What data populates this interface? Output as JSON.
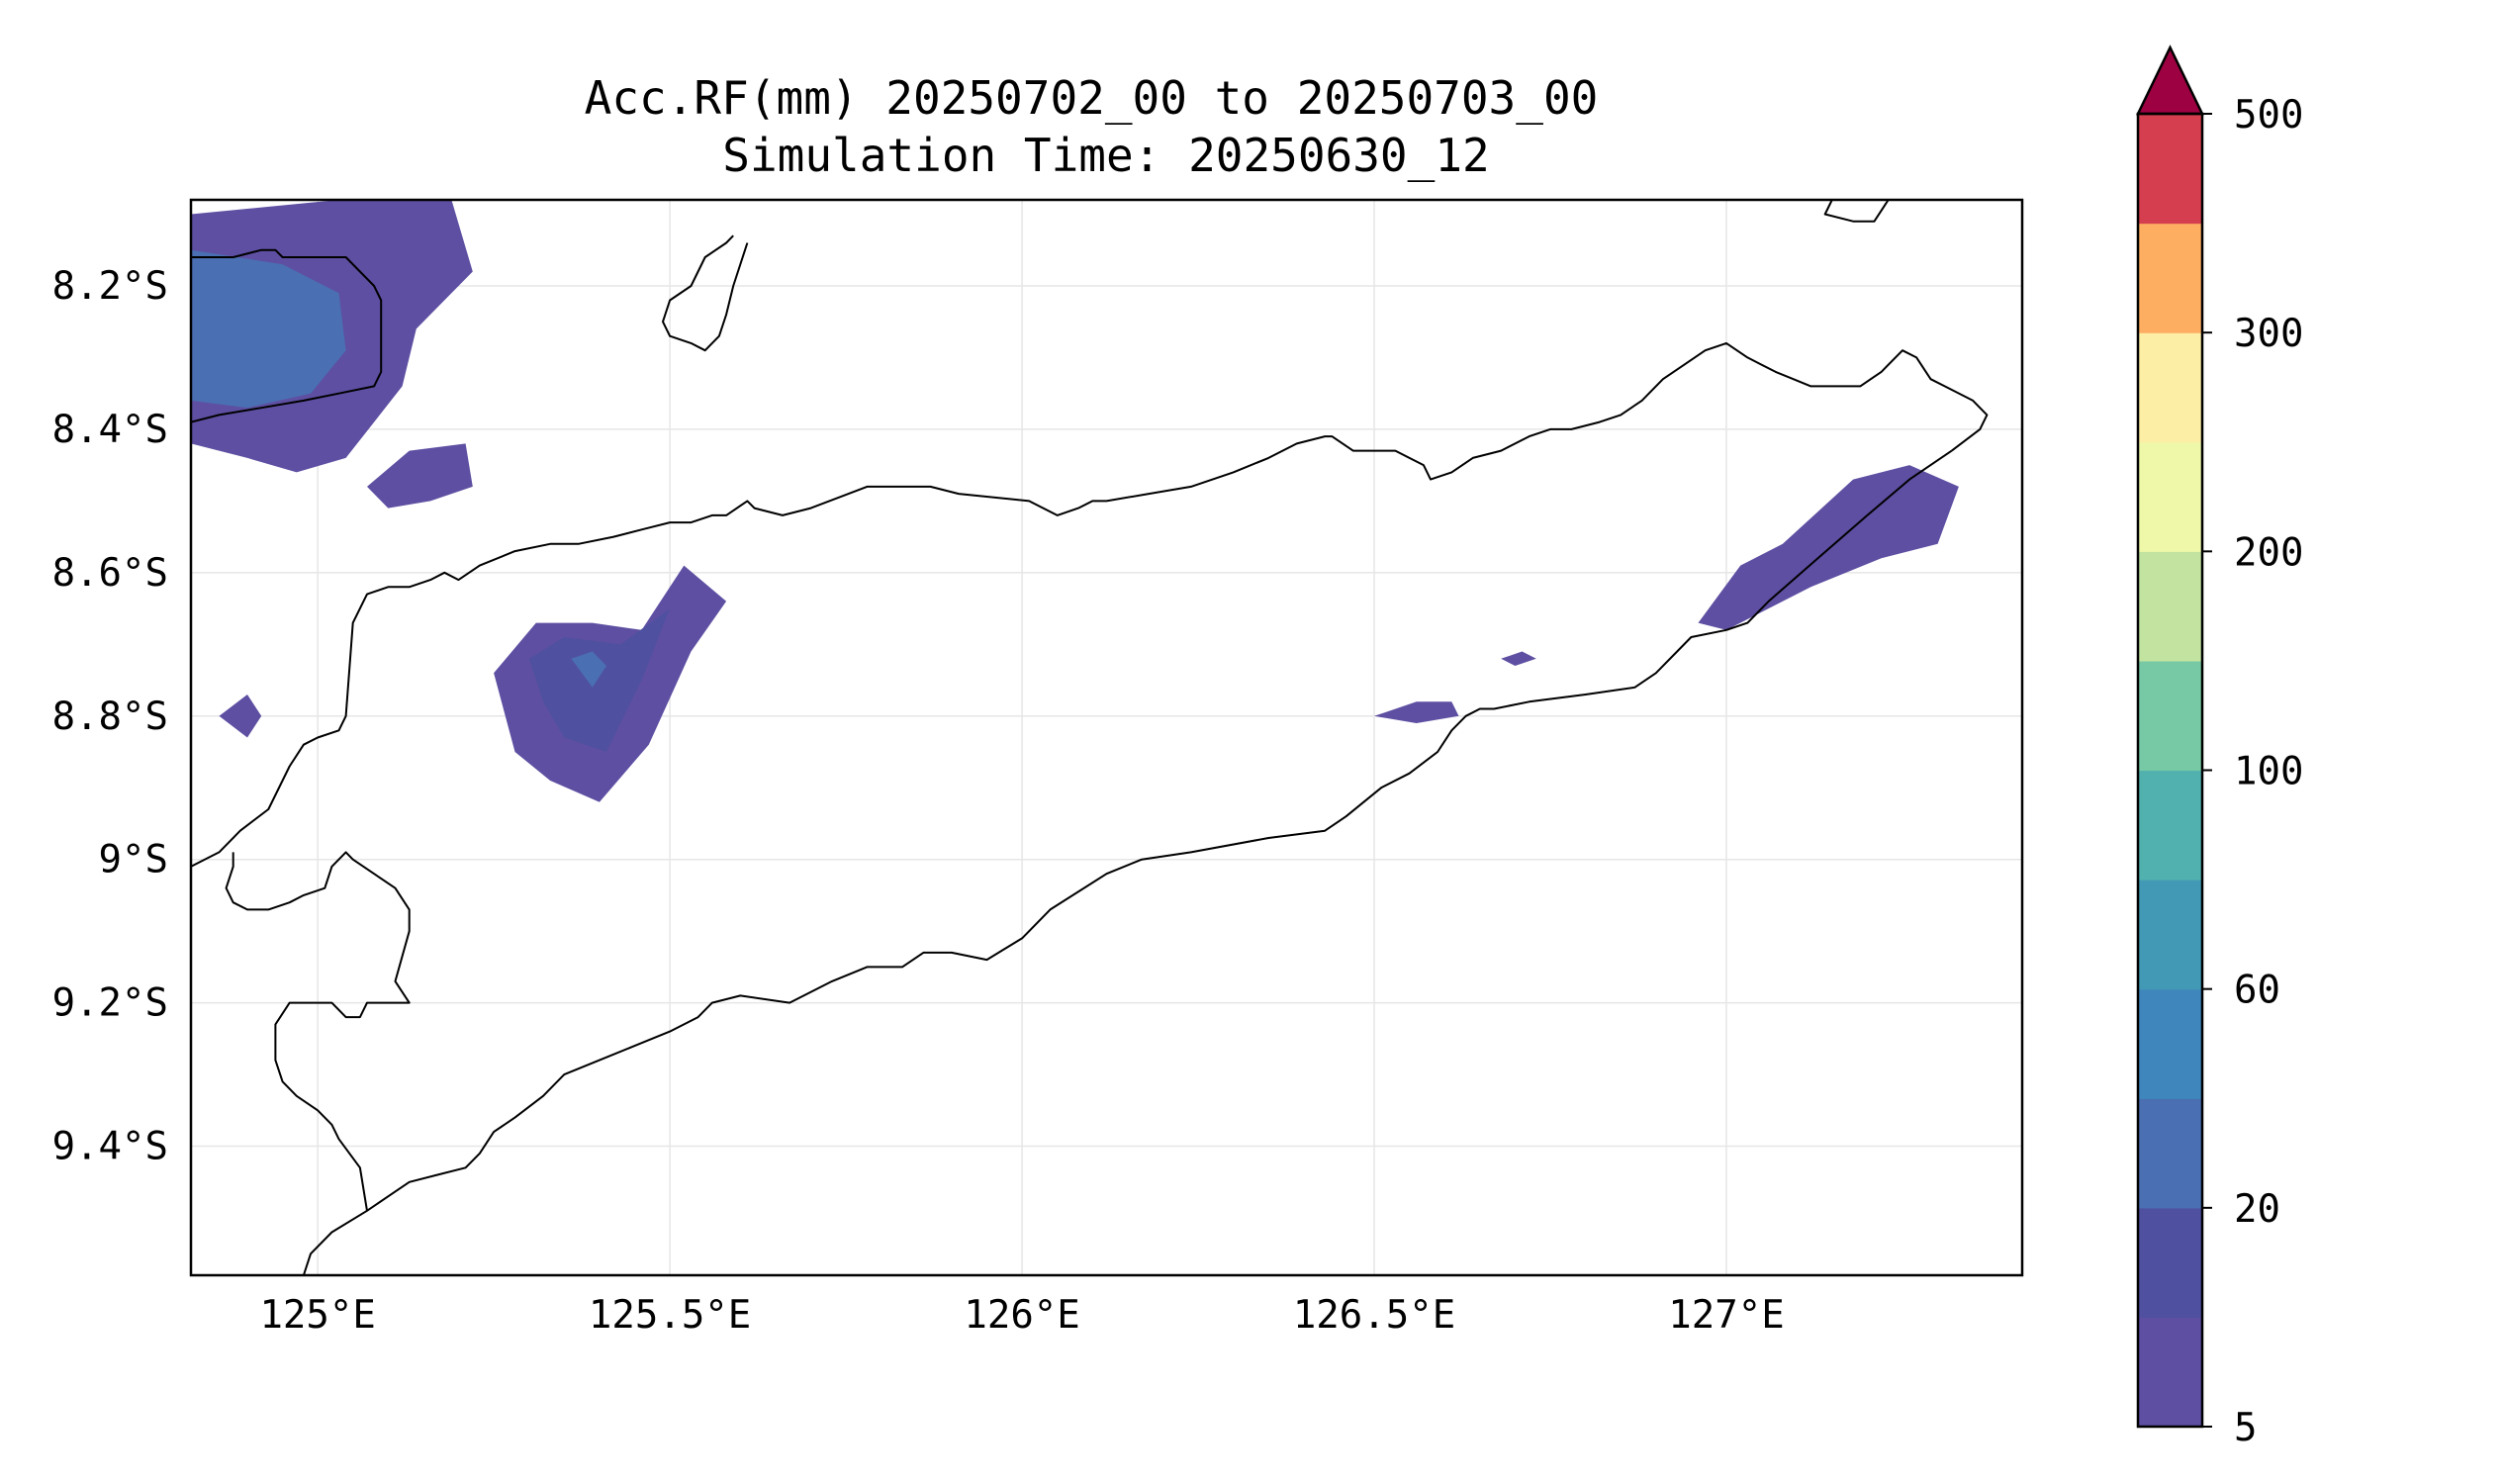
{
  "title": {
    "line1": "Acc.RF(mm) 20250702_00 to 20250703_00",
    "line2": "Simulation Time: 20250630_12"
  },
  "map": {
    "lon_range": [
      124.82,
      127.42
    ],
    "lat_range": [
      -9.58,
      -8.08
    ],
    "x_ticks": [
      {
        "value": 125.0,
        "label": "125°E"
      },
      {
        "value": 125.5,
        "label": "125.5°E"
      },
      {
        "value": 126.0,
        "label": "126°E"
      },
      {
        "value": 126.5,
        "label": "126.5°E"
      },
      {
        "value": 127.0,
        "label": "127°E"
      }
    ],
    "y_ticks": [
      {
        "value": -8.2,
        "label": "8.2°S"
      },
      {
        "value": -8.4,
        "label": "8.4°S"
      },
      {
        "value": -8.6,
        "label": "8.6°S"
      },
      {
        "value": -8.8,
        "label": "8.8°S"
      },
      {
        "value": -9.0,
        "label": "9°S"
      },
      {
        "value": -9.2,
        "label": "9.2°S"
      },
      {
        "value": -9.4,
        "label": "9.4°S"
      }
    ],
    "grid": true
  },
  "colorbar": {
    "extend": "max",
    "levels": [
      5,
      10,
      20,
      40,
      60,
      80,
      100,
      150,
      200,
      250,
      300,
      400,
      500
    ],
    "colors": [
      "#5e4fa2",
      "#5050a0",
      "#4a6fb2",
      "#3f86bc",
      "#4199b6",
      "#51b1ae",
      "#77c8a4",
      "#c2e4a0",
      "#eef8a8",
      "#fdeea6",
      "#fdae61",
      "#d53e4f"
    ],
    "extend_color": "#9e0142",
    "tick_labels": [
      {
        "level": 5,
        "label": "5"
      },
      {
        "level": 20,
        "label": "20"
      },
      {
        "level": 60,
        "label": "60"
      },
      {
        "level": 100,
        "label": "100"
      },
      {
        "level": 200,
        "label": "200"
      },
      {
        "level": 300,
        "label": "300"
      },
      {
        "level": 500,
        "label": "500"
      }
    ]
  },
  "rain_areas": [
    {
      "name": "rain-area-northwest",
      "color": "#5e4fa2",
      "polygon": [
        [
          124.82,
          -8.1
        ],
        [
          125.03,
          -8.08
        ],
        [
          125.19,
          -8.08
        ],
        [
          125.22,
          -8.18
        ],
        [
          125.14,
          -8.26
        ],
        [
          125.12,
          -8.34
        ],
        [
          125.04,
          -8.44
        ],
        [
          124.97,
          -8.46
        ],
        [
          124.9,
          -8.44
        ],
        [
          124.82,
          -8.42
        ]
      ]
    },
    {
      "name": "rain-area-northwest-core",
      "color": "#4a6fb2",
      "polygon": [
        [
          124.82,
          -8.15
        ],
        [
          124.95,
          -8.17
        ],
        [
          125.03,
          -8.21
        ],
        [
          125.04,
          -8.29
        ],
        [
          124.99,
          -8.35
        ],
        [
          124.9,
          -8.37
        ],
        [
          124.82,
          -8.36
        ]
      ]
    },
    {
      "name": "rain-area-small-north",
      "color": "#5e4fa2",
      "polygon": [
        [
          125.07,
          -8.48
        ],
        [
          125.13,
          -8.43
        ],
        [
          125.21,
          -8.42
        ],
        [
          125.22,
          -8.48
        ],
        [
          125.16,
          -8.5
        ],
        [
          125.1,
          -8.51
        ]
      ]
    },
    {
      "name": "rain-area-west-dot",
      "color": "#5e4fa2",
      "polygon": [
        [
          124.86,
          -8.8
        ],
        [
          124.9,
          -8.77
        ],
        [
          124.92,
          -8.8
        ],
        [
          124.9,
          -8.83
        ]
      ]
    },
    {
      "name": "rain-area-central",
      "color": "#5e4fa2",
      "polygon": [
        [
          125.25,
          -8.74
        ],
        [
          125.31,
          -8.67
        ],
        [
          125.39,
          -8.67
        ],
        [
          125.46,
          -8.68
        ],
        [
          125.52,
          -8.59
        ],
        [
          125.58,
          -8.64
        ],
        [
          125.53,
          -8.71
        ],
        [
          125.47,
          -8.84
        ],
        [
          125.4,
          -8.92
        ],
        [
          125.33,
          -8.89
        ],
        [
          125.28,
          -8.85
        ]
      ]
    },
    {
      "name": "rain-area-central-core",
      "color": "#5050a0",
      "polygon": [
        [
          125.3,
          -8.72
        ],
        [
          125.35,
          -8.69
        ],
        [
          125.43,
          -8.7
        ],
        [
          125.5,
          -8.65
        ],
        [
          125.46,
          -8.75
        ],
        [
          125.41,
          -8.85
        ],
        [
          125.35,
          -8.83
        ],
        [
          125.32,
          -8.78
        ]
      ]
    },
    {
      "name": "rain-area-central-spot",
      "color": "#4a6fb2",
      "polygon": [
        [
          125.36,
          -8.72
        ],
        [
          125.39,
          -8.71
        ],
        [
          125.41,
          -8.73
        ],
        [
          125.39,
          -8.76
        ]
      ]
    },
    {
      "name": "rain-area-east-small-1",
      "color": "#5e4fa2",
      "polygon": [
        [
          126.5,
          -8.8
        ],
        [
          126.56,
          -8.78
        ],
        [
          126.61,
          -8.78
        ],
        [
          126.62,
          -8.8
        ],
        [
          126.56,
          -8.81
        ]
      ]
    },
    {
      "name": "rain-area-east-small-2",
      "color": "#5e4fa2",
      "polygon": [
        [
          126.68,
          -8.72
        ],
        [
          126.71,
          -8.71
        ],
        [
          126.73,
          -8.72
        ],
        [
          126.7,
          -8.73
        ]
      ]
    },
    {
      "name": "rain-area-east",
      "color": "#5e4fa2",
      "polygon": [
        [
          126.96,
          -8.67
        ],
        [
          127.02,
          -8.59
        ],
        [
          127.08,
          -8.56
        ],
        [
          127.18,
          -8.47
        ],
        [
          127.26,
          -8.45
        ],
        [
          127.33,
          -8.48
        ],
        [
          127.3,
          -8.56
        ],
        [
          127.22,
          -8.58
        ],
        [
          127.12,
          -8.62
        ],
        [
          127.0,
          -8.68
        ]
      ]
    }
  ],
  "coastlines": [
    {
      "name": "timor-north-coast",
      "points": [
        [
          124.82,
          -9.01
        ],
        [
          124.86,
          -8.99
        ],
        [
          124.89,
          -8.96
        ],
        [
          124.93,
          -8.93
        ],
        [
          124.96,
          -8.87
        ],
        [
          124.98,
          -8.84
        ],
        [
          125.0,
          -8.83
        ],
        [
          125.03,
          -8.82
        ],
        [
          125.04,
          -8.8
        ],
        [
          125.05,
          -8.67
        ],
        [
          125.07,
          -8.63
        ],
        [
          125.1,
          -8.62
        ],
        [
          125.13,
          -8.62
        ],
        [
          125.16,
          -8.61
        ],
        [
          125.18,
          -8.6
        ],
        [
          125.2,
          -8.61
        ],
        [
          125.23,
          -8.59
        ],
        [
          125.28,
          -8.57
        ],
        [
          125.33,
          -8.56
        ],
        [
          125.37,
          -8.56
        ],
        [
          125.42,
          -8.55
        ],
        [
          125.46,
          -8.54
        ],
        [
          125.5,
          -8.53
        ],
        [
          125.53,
          -8.53
        ],
        [
          125.56,
          -8.52
        ],
        [
          125.58,
          -8.52
        ],
        [
          125.61,
          -8.5
        ],
        [
          125.62,
          -8.51
        ],
        [
          125.66,
          -8.52
        ],
        [
          125.7,
          -8.51
        ],
        [
          125.78,
          -8.48
        ],
        [
          125.87,
          -8.48
        ],
        [
          125.91,
          -8.49
        ],
        [
          126.01,
          -8.5
        ],
        [
          126.05,
          -8.52
        ],
        [
          126.08,
          -8.51
        ],
        [
          126.1,
          -8.5
        ],
        [
          126.12,
          -8.5
        ],
        [
          126.18,
          -8.49
        ],
        [
          126.24,
          -8.48
        ],
        [
          126.3,
          -8.46
        ],
        [
          126.35,
          -8.44
        ],
        [
          126.39,
          -8.42
        ],
        [
          126.43,
          -8.41
        ],
        [
          126.44,
          -8.41
        ],
        [
          126.47,
          -8.43
        ],
        [
          126.49,
          -8.43
        ],
        [
          126.53,
          -8.43
        ],
        [
          126.55,
          -8.44
        ],
        [
          126.57,
          -8.45
        ],
        [
          126.58,
          -8.47
        ],
        [
          126.61,
          -8.46
        ],
        [
          126.64,
          -8.44
        ],
        [
          126.68,
          -8.43
        ],
        [
          126.72,
          -8.41
        ],
        [
          126.75,
          -8.4
        ],
        [
          126.78,
          -8.4
        ],
        [
          126.82,
          -8.39
        ],
        [
          126.85,
          -8.38
        ],
        [
          126.88,
          -8.36
        ],
        [
          126.91,
          -8.33
        ],
        [
          126.94,
          -8.31
        ],
        [
          126.97,
          -8.29
        ],
        [
          127.0,
          -8.28
        ],
        [
          127.03,
          -8.3
        ],
        [
          127.07,
          -8.32
        ],
        [
          127.12,
          -8.34
        ],
        [
          127.16,
          -8.34
        ],
        [
          127.19,
          -8.34
        ],
        [
          127.22,
          -8.32
        ],
        [
          127.25,
          -8.29
        ],
        [
          127.27,
          -8.3
        ],
        [
          127.29,
          -8.33
        ],
        [
          127.31,
          -8.34
        ],
        [
          127.35,
          -8.36
        ],
        [
          127.37,
          -8.38
        ],
        [
          127.36,
          -8.4
        ],
        [
          127.32,
          -8.43
        ]
      ]
    },
    {
      "name": "timor-south-coast",
      "points": [
        [
          127.32,
          -8.43
        ],
        [
          127.26,
          -8.47
        ],
        [
          127.2,
          -8.52
        ],
        [
          127.13,
          -8.58
        ],
        [
          127.06,
          -8.64
        ],
        [
          127.03,
          -8.67
        ],
        [
          127.0,
          -8.68
        ],
        [
          126.95,
          -8.69
        ],
        [
          126.93,
          -8.71
        ],
        [
          126.9,
          -8.74
        ],
        [
          126.87,
          -8.76
        ],
        [
          126.8,
          -8.77
        ],
        [
          126.72,
          -8.78
        ],
        [
          126.67,
          -8.79
        ],
        [
          126.65,
          -8.79
        ],
        [
          126.63,
          -8.8
        ],
        [
          126.61,
          -8.82
        ],
        [
          126.59,
          -8.85
        ],
        [
          126.55,
          -8.88
        ],
        [
          126.51,
          -8.9
        ],
        [
          126.46,
          -8.94
        ],
        [
          126.43,
          -8.96
        ],
        [
          126.35,
          -8.97
        ],
        [
          126.24,
          -8.99
        ],
        [
          126.17,
          -9.0
        ],
        [
          126.12,
          -9.02
        ],
        [
          126.04,
          -9.07
        ],
        [
          126.0,
          -9.11
        ],
        [
          125.95,
          -9.14
        ],
        [
          125.9,
          -9.13
        ],
        [
          125.86,
          -9.13
        ],
        [
          125.83,
          -9.15
        ],
        [
          125.78,
          -9.15
        ],
        [
          125.73,
          -9.17
        ],
        [
          125.67,
          -9.2
        ],
        [
          125.6,
          -9.19
        ],
        [
          125.56,
          -9.2
        ],
        [
          125.54,
          -9.22
        ],
        [
          125.5,
          -9.24
        ],
        [
          125.45,
          -9.26
        ],
        [
          125.4,
          -9.28
        ],
        [
          125.35,
          -9.3
        ],
        [
          125.32,
          -9.33
        ],
        [
          125.28,
          -9.36
        ],
        [
          125.25,
          -9.38
        ],
        [
          125.23,
          -9.41
        ],
        [
          125.21,
          -9.43
        ],
        [
          125.17,
          -9.44
        ],
        [
          125.13,
          -9.45
        ],
        [
          125.1,
          -9.47
        ],
        [
          125.07,
          -9.49
        ],
        [
          125.02,
          -9.52
        ],
        [
          124.99,
          -9.55
        ],
        [
          124.98,
          -9.58
        ]
      ]
    },
    {
      "name": "west-timor-border",
      "points": [
        [
          125.07,
          -9.49
        ],
        [
          125.06,
          -9.43
        ],
        [
          125.03,
          -9.39
        ],
        [
          125.02,
          -9.37
        ],
        [
          125.0,
          -9.35
        ],
        [
          124.97,
          -9.33
        ],
        [
          124.95,
          -9.31
        ],
        [
          124.94,
          -9.28
        ],
        [
          124.94,
          -9.23
        ],
        [
          124.96,
          -9.2
        ],
        [
          124.98,
          -9.2
        ],
        [
          125.02,
          -9.2
        ],
        [
          125.04,
          -9.22
        ],
        [
          125.06,
          -9.22
        ],
        [
          125.07,
          -9.2
        ],
        [
          125.1,
          -9.2
        ],
        [
          125.13,
          -9.2
        ],
        [
          125.11,
          -9.17
        ],
        [
          125.13,
          -9.1
        ],
        [
          125.13,
          -9.07
        ],
        [
          125.11,
          -9.04
        ],
        [
          125.08,
          -9.02
        ],
        [
          125.05,
          -9.0
        ],
        [
          125.04,
          -8.99
        ],
        [
          125.02,
          -9.01
        ],
        [
          125.01,
          -9.04
        ],
        [
          124.98,
          -9.05
        ],
        [
          124.96,
          -9.06
        ],
        [
          124.93,
          -9.07
        ],
        [
          124.9,
          -9.07
        ],
        [
          124.88,
          -9.06
        ],
        [
          124.87,
          -9.04
        ],
        [
          124.88,
          -9.01
        ],
        [
          124.88,
          -8.99
        ]
      ]
    },
    {
      "name": "alor-island-coast",
      "points": [
        [
          124.82,
          -8.16
        ],
        [
          124.88,
          -8.16
        ],
        [
          124.92,
          -8.15
        ],
        [
          124.94,
          -8.15
        ],
        [
          124.95,
          -8.16
        ],
        [
          124.99,
          -8.16
        ],
        [
          125.04,
          -8.16
        ],
        [
          125.08,
          -8.2
        ],
        [
          125.09,
          -8.22
        ],
        [
          125.09,
          -8.29
        ],
        [
          125.09,
          -8.32
        ],
        [
          125.08,
          -8.34
        ],
        [
          125.03,
          -8.35
        ],
        [
          124.98,
          -8.36
        ],
        [
          124.92,
          -8.37
        ],
        [
          124.86,
          -8.38
        ],
        [
          124.82,
          -8.39
        ]
      ]
    },
    {
      "name": "atauro-island-coast",
      "points": [
        [
          125.61,
          -8.14
        ],
        [
          125.59,
          -8.2
        ],
        [
          125.58,
          -8.24
        ],
        [
          125.57,
          -8.27
        ],
        [
          125.55,
          -8.29
        ],
        [
          125.53,
          -8.28
        ],
        [
          125.5,
          -8.27
        ],
        [
          125.49,
          -8.25
        ],
        [
          125.5,
          -8.22
        ],
        [
          125.53,
          -8.2
        ],
        [
          125.55,
          -8.16
        ],
        [
          125.58,
          -8.14
        ],
        [
          125.59,
          -8.13
        ]
      ]
    },
    {
      "name": "wetar-island-coast",
      "points": [
        [
          127.15,
          -8.08
        ],
        [
          127.14,
          -8.1
        ],
        [
          127.18,
          -8.11
        ],
        [
          127.21,
          -8.11
        ],
        [
          127.23,
          -8.08
        ]
      ]
    }
  ]
}
